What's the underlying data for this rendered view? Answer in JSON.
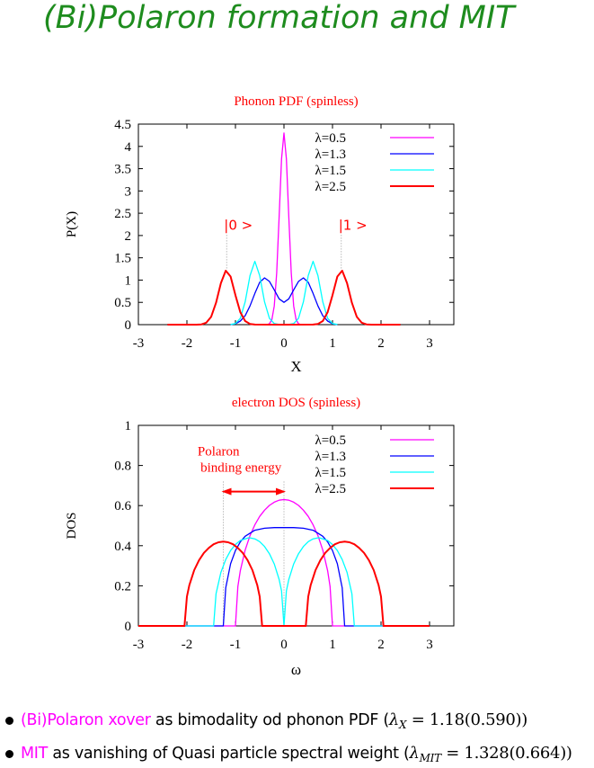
{
  "title": "(Bi)Polaron formation and MIT",
  "colors": {
    "title": "#1e8c1e",
    "accent": "#ff0000",
    "highlight": "#ff00ff"
  },
  "bullets": [
    {
      "highlight": "(Bi)Polaron xover",
      "text": " as bimodality od phonon PDF (",
      "symbol": "λ",
      "subscript": "X",
      "value": " = 1.18(0.590))"
    },
    {
      "highlight": "MIT",
      "text": " as vanishing of Quasi particle spectral weight (",
      "symbol": "λ",
      "subscript": "MIT",
      "value": " = 1.328(0.664))"
    }
  ],
  "chart_data": [
    {
      "type": "line",
      "title": "Phonon PDF (spinless)",
      "xlabel": "X",
      "ylabel": "P(X)",
      "xlim": [
        -3,
        3.5
      ],
      "ylim": [
        0,
        4.5
      ],
      "xticks": [
        -3,
        -2,
        -1,
        0,
        1,
        2,
        3
      ],
      "yticks": [
        0,
        0.5,
        1,
        1.5,
        2,
        2.5,
        3,
        3.5,
        4,
        4.5
      ],
      "ytick_labels": [
        "0",
        "0.5",
        "1",
        "1.5",
        "2",
        "2.5",
        "3",
        "3.5",
        "4",
        "4.5"
      ],
      "grid": false,
      "legend": "top-right",
      "annotations": [
        {
          "text": "|0 >",
          "x": -1.18,
          "y": 2.05,
          "to_y": 1.22
        },
        {
          "text": "|1 >",
          "x": 1.18,
          "y": 2.05,
          "to_y": 1.22
        }
      ],
      "series": [
        {
          "name": "λ=0.5",
          "color": "#ff00ff",
          "x": [
            -0.35,
            -0.3,
            -0.25,
            -0.2,
            -0.15,
            -0.1,
            -0.05,
            0,
            0.05,
            0.1,
            0.15,
            0.2,
            0.25,
            0.3,
            0.35
          ],
          "y": [
            0,
            0.02,
            0.11,
            0.42,
            1.16,
            2.41,
            3.72,
            4.3,
            3.72,
            2.41,
            1.16,
            0.42,
            0.11,
            0.02,
            0
          ]
        },
        {
          "name": "λ=1.3",
          "color": "#0000ff",
          "x": [
            -1.1,
            -1.0,
            -0.9,
            -0.8,
            -0.7,
            -0.6,
            -0.5,
            -0.4,
            -0.3,
            -0.2,
            -0.1,
            0,
            0.1,
            0.2,
            0.3,
            0.4,
            0.5,
            0.6,
            0.7,
            0.8,
            0.9,
            1.0,
            1.1
          ],
          "y": [
            0,
            0.02,
            0.08,
            0.2,
            0.42,
            0.7,
            0.95,
            1.05,
            0.97,
            0.78,
            0.58,
            0.5,
            0.58,
            0.78,
            0.97,
            1.05,
            0.95,
            0.7,
            0.42,
            0.2,
            0.08,
            0.02,
            0
          ]
        },
        {
          "name": "λ=1.5",
          "color": "#00ffff",
          "x": [
            -1.1,
            -1.0,
            -0.9,
            -0.8,
            -0.7,
            -0.6,
            -0.5,
            -0.4,
            -0.3,
            -0.2,
            -0.1,
            0,
            0.1,
            0.2,
            0.3,
            0.4,
            0.5,
            0.6,
            0.7,
            0.8,
            0.9,
            1.0,
            1.1
          ],
          "y": [
            0.005,
            0.024,
            0.143,
            0.51,
            1.1,
            1.42,
            1.1,
            0.51,
            0.143,
            0.024,
            0.005,
            0.002,
            0.005,
            0.024,
            0.143,
            0.51,
            1.1,
            1.42,
            1.1,
            0.51,
            0.143,
            0.024,
            0.005
          ]
        },
        {
          "name": "λ=2.5",
          "color": "#ff0000",
          "x": [
            -2.4,
            -1.8,
            -1.7,
            -1.6,
            -1.5,
            -1.4,
            -1.3,
            -1.2,
            -1.1,
            -1.0,
            -0.9,
            -0.8,
            -0.7,
            -0.6,
            0,
            0.6,
            0.7,
            0.8,
            0.9,
            1.0,
            1.1,
            1.2,
            1.3,
            1.4,
            1.5,
            1.6,
            1.7,
            1.8,
            2.4
          ],
          "y": [
            0,
            0.001,
            0.007,
            0.044,
            0.177,
            0.49,
            0.93,
            1.21,
            1.08,
            0.66,
            0.28,
            0.08,
            0.016,
            0.002,
            0,
            0.002,
            0.016,
            0.08,
            0.28,
            0.66,
            1.08,
            1.21,
            0.93,
            0.49,
            0.177,
            0.044,
            0.007,
            0.001,
            0
          ]
        }
      ]
    },
    {
      "type": "line",
      "title": "electron DOS (spinless)",
      "xlabel": "ω",
      "ylabel": "DOS",
      "xlim": [
        -3,
        3.5
      ],
      "ylim": [
        0,
        1
      ],
      "xticks": [
        -3,
        -2,
        -1,
        0,
        1,
        2,
        3
      ],
      "yticks": [
        0,
        0.2,
        0.4,
        0.6,
        0.8,
        1
      ],
      "ytick_labels": [
        "0",
        "0.2",
        "0.4",
        "0.6",
        "0.8",
        "1"
      ],
      "grid": false,
      "legend": "top-right",
      "annotations": [
        {
          "text": "Polaron",
          "text2": "binding energy",
          "arrow_from": -1.25,
          "arrow_to": 0,
          "arrow_y": 0.67
        }
      ],
      "series": [
        {
          "name": "λ=0.5",
          "color": "#ff00ff",
          "x": [
            -3,
            -1.0,
            -0.95,
            -0.9,
            -0.8,
            -0.7,
            -0.6,
            -0.5,
            -0.4,
            -0.3,
            -0.2,
            -0.1,
            0,
            0.1,
            0.2,
            0.3,
            0.4,
            0.5,
            0.6,
            0.7,
            0.8,
            0.9,
            0.95,
            1.0,
            3
          ],
          "y": [
            0,
            0,
            0.197,
            0.275,
            0.378,
            0.45,
            0.504,
            0.546,
            0.577,
            0.601,
            0.617,
            0.627,
            0.63,
            0.627,
            0.617,
            0.601,
            0.577,
            0.546,
            0.504,
            0.45,
            0.378,
            0.275,
            0.197,
            0,
            0
          ]
        },
        {
          "name": "λ=1.3",
          "color": "#0000ff",
          "x": [
            -3,
            -1.25,
            -1.2,
            -1.1,
            -1.0,
            -0.9,
            -0.8,
            -0.6,
            -0.4,
            -0.2,
            0,
            0.2,
            0.4,
            0.6,
            0.8,
            0.9,
            1.0,
            1.1,
            1.2,
            1.25,
            3
          ],
          "y": [
            0,
            0,
            0.19,
            0.31,
            0.376,
            0.419,
            0.447,
            0.477,
            0.487,
            0.49,
            0.49,
            0.49,
            0.487,
            0.477,
            0.447,
            0.419,
            0.376,
            0.31,
            0.19,
            0,
            0
          ]
        },
        {
          "name": "λ=1.5",
          "color": "#00ffff",
          "x": [
            -3,
            -1.45,
            -1.4,
            -1.3,
            -1.2,
            -1.1,
            -1.0,
            -0.9,
            -0.72,
            -0.6,
            -0.5,
            -0.4,
            -0.3,
            -0.2,
            -0.1,
            -0.05,
            0,
            0.05,
            0.1,
            0.2,
            0.3,
            0.4,
            0.5,
            0.6,
            0.72,
            0.9,
            1.0,
            1.1,
            1.2,
            1.3,
            1.4,
            1.45,
            3
          ],
          "y": [
            0,
            0,
            0.16,
            0.267,
            0.331,
            0.376,
            0.406,
            0.426,
            0.44,
            0.434,
            0.42,
            0.396,
            0.36,
            0.309,
            0.232,
            0.175,
            0,
            0.175,
            0.232,
            0.309,
            0.36,
            0.396,
            0.42,
            0.434,
            0.44,
            0.426,
            0.406,
            0.376,
            0.331,
            0.267,
            0.16,
            0,
            0
          ]
        },
        {
          "name": "λ=2.5",
          "color": "#ff0000",
          "x": [
            -3,
            -2.05,
            -2.0,
            -1.95,
            -1.85,
            -1.75,
            -1.65,
            -1.55,
            -1.45,
            -1.35,
            -1.25,
            -1.15,
            -1.05,
            -0.95,
            -0.85,
            -0.75,
            -0.65,
            -0.55,
            -0.5,
            -0.45,
            0.45,
            0.5,
            0.55,
            0.65,
            0.75,
            0.85,
            0.95,
            1.05,
            1.15,
            1.25,
            1.35,
            1.45,
            1.55,
            1.65,
            1.75,
            1.85,
            1.95,
            2.0,
            2.05,
            3
          ],
          "y": [
            0,
            0,
            0.146,
            0.203,
            0.278,
            0.328,
            0.364,
            0.389,
            0.407,
            0.417,
            0.42,
            0.417,
            0.407,
            0.389,
            0.364,
            0.328,
            0.278,
            0.203,
            0.146,
            0,
            0,
            0.146,
            0.203,
            0.278,
            0.328,
            0.364,
            0.389,
            0.407,
            0.417,
            0.42,
            0.417,
            0.407,
            0.389,
            0.364,
            0.328,
            0.278,
            0.203,
            0.146,
            0,
            0
          ]
        }
      ]
    }
  ]
}
